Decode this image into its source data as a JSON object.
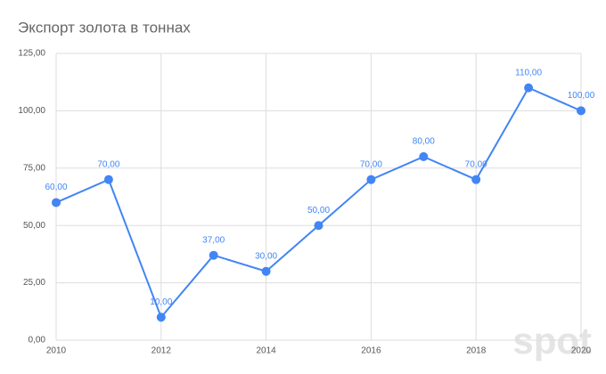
{
  "chart_data": {
    "type": "line",
    "title": "Экспорт золота в тоннах",
    "x": [
      2010,
      2011,
      2012,
      2013,
      2014,
      2015,
      2016,
      2017,
      2018,
      2019,
      2020
    ],
    "series": [
      {
        "color": "#4285f4",
        "values": [
          60,
          70,
          10,
          37,
          30,
          50,
          70,
          80,
          70,
          110,
          100
        ],
        "value_labels": [
          "60,00",
          "70,00",
          "10,00",
          "37,00",
          "30,00",
          "50,00",
          "70,00",
          "80,00",
          "70,00",
          "110,00",
          "100,00"
        ]
      }
    ],
    "xlim": [
      2010,
      2020
    ],
    "xticks": [
      2010,
      2012,
      2014,
      2016,
      2018,
      2020
    ],
    "ylim": [
      0,
      125
    ],
    "yticks": [
      {
        "value": 0,
        "label": "0,00"
      },
      {
        "value": 25,
        "label": "25,00"
      },
      {
        "value": 50,
        "label": "50,00"
      },
      {
        "value": 75,
        "label": "75,00"
      },
      {
        "value": 100,
        "label": "100,00"
      },
      {
        "value": 125,
        "label": "125,00"
      }
    ],
    "grid": true,
    "watermark": "spot"
  }
}
